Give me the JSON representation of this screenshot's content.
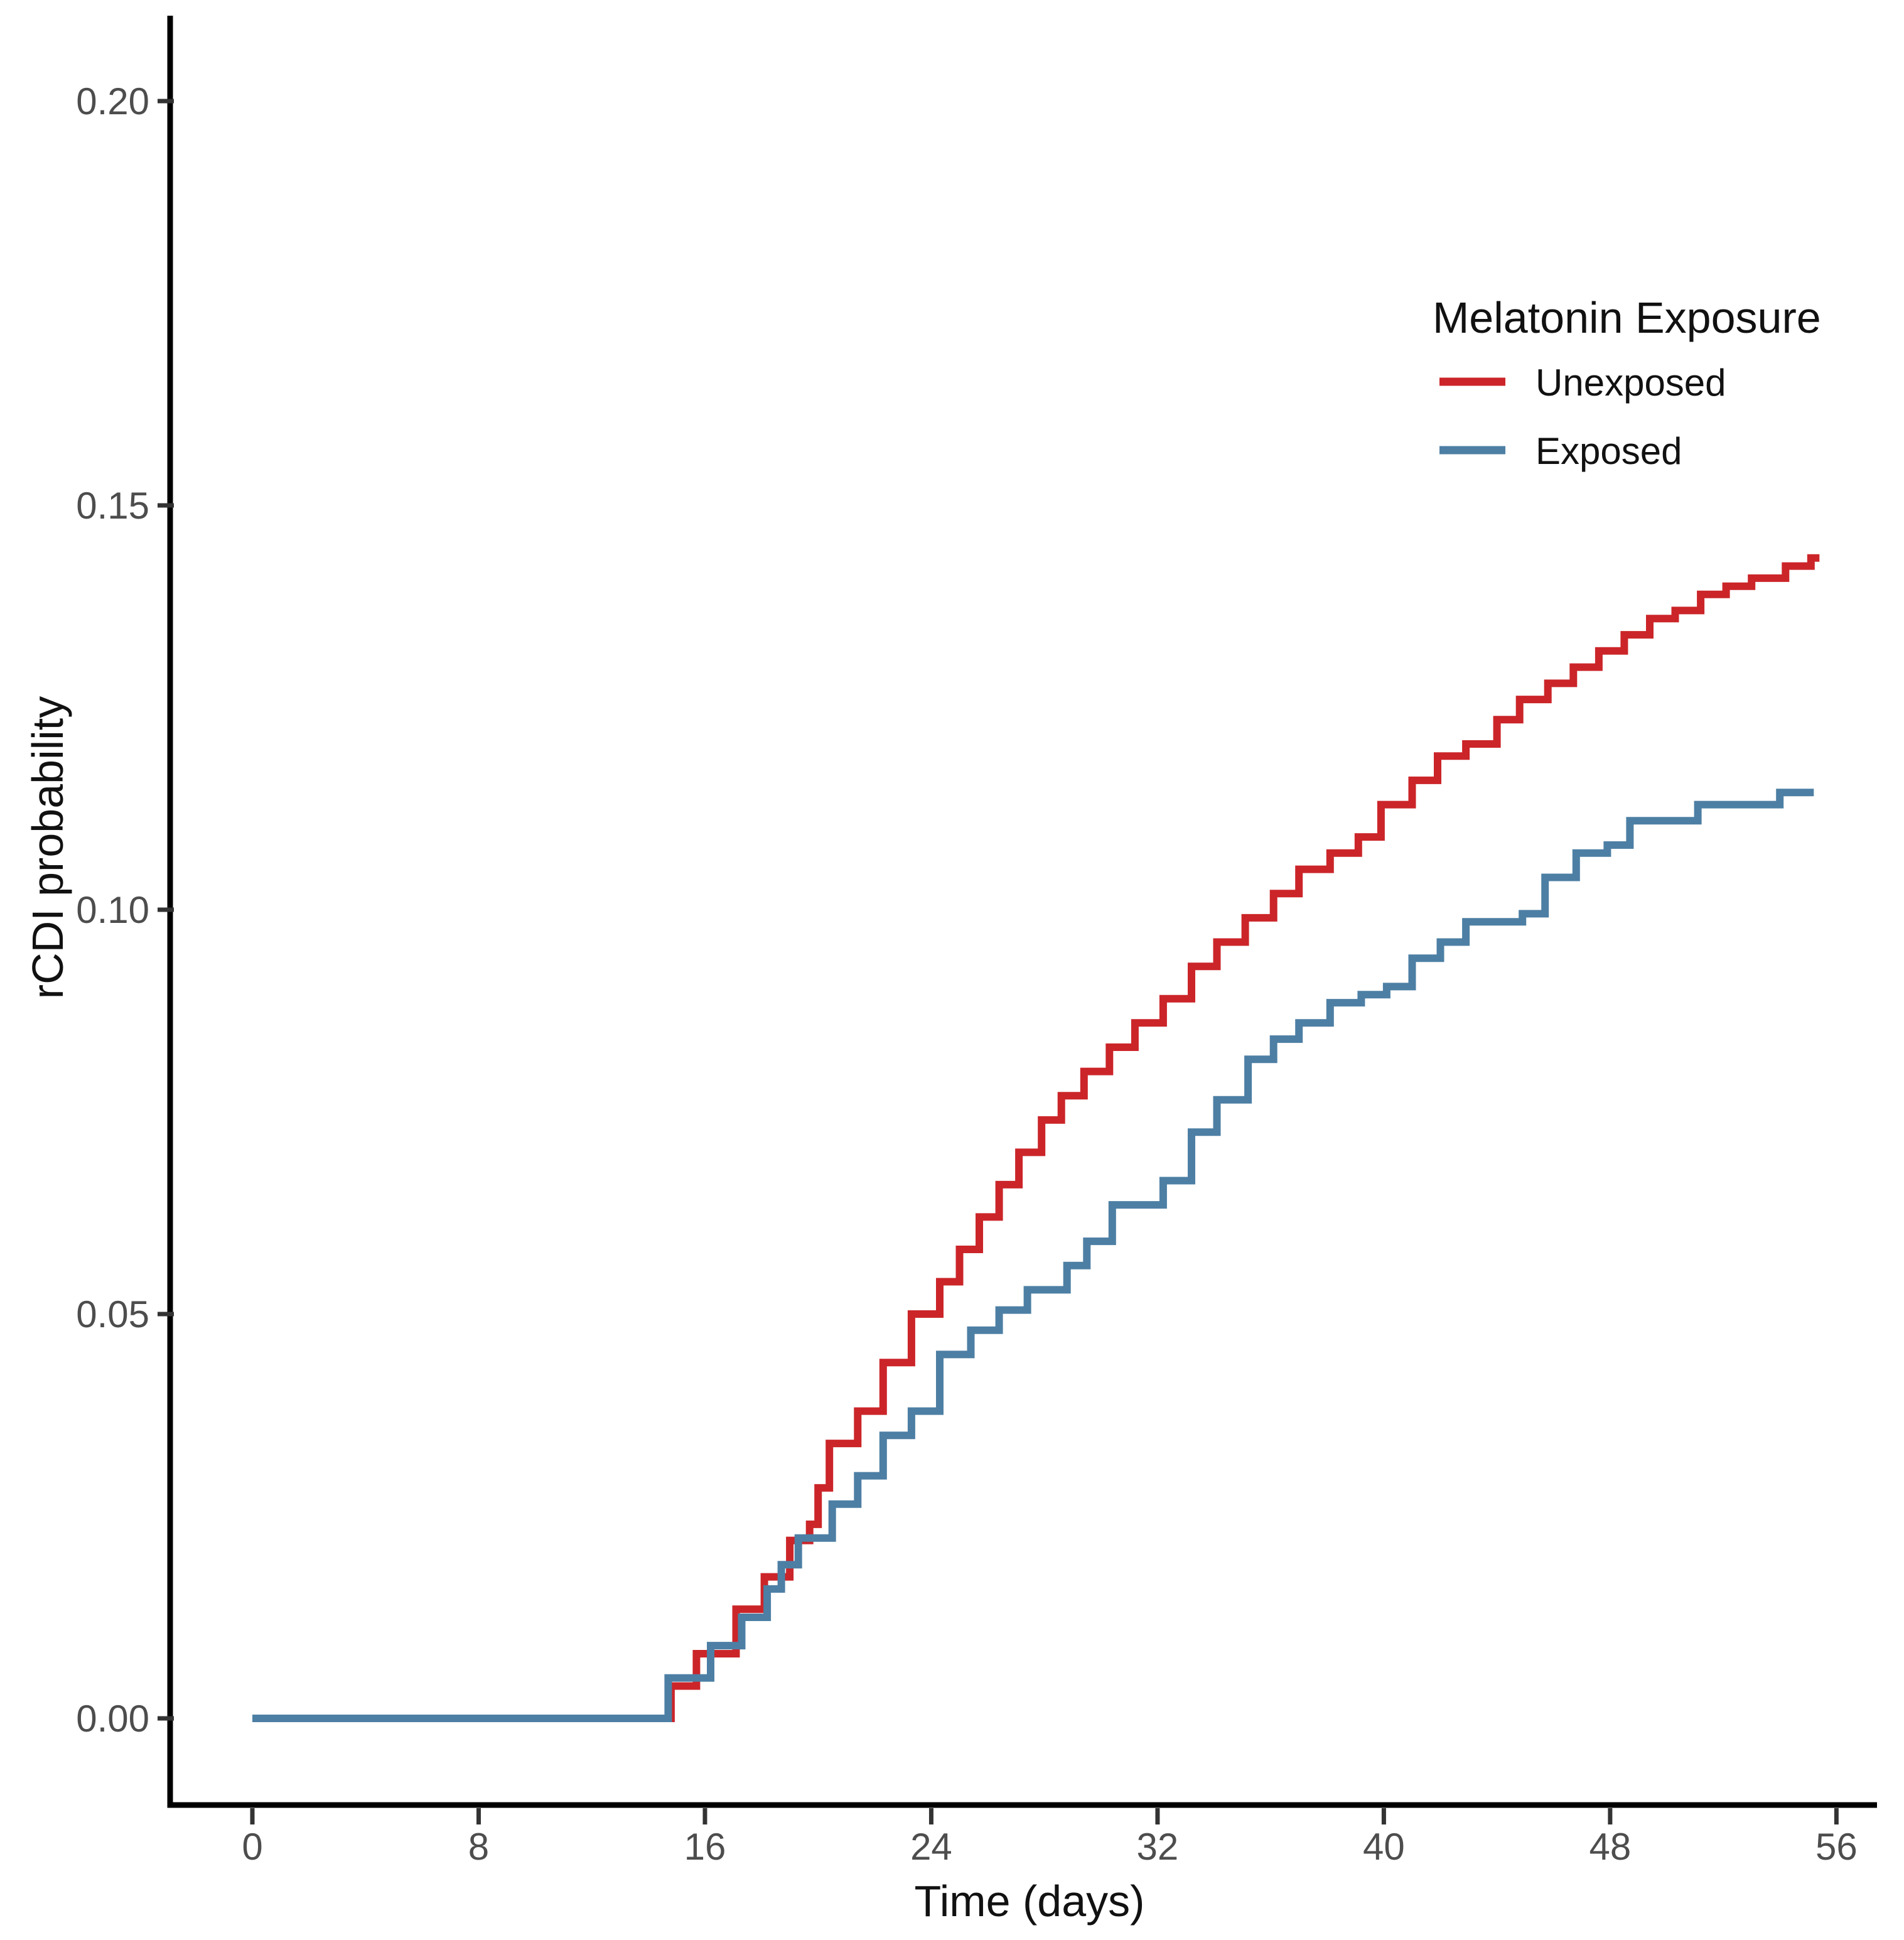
{
  "chart_data": {
    "type": "line",
    "variant": "step-cumulative-incidence",
    "title": "",
    "xlabel": "Time (days)",
    "ylabel": "rCDI probability",
    "xlim": [
      0,
      56
    ],
    "ylim": [
      0,
      0.21
    ],
    "x_ticks": [
      0,
      8,
      16,
      24,
      32,
      40,
      48,
      56
    ],
    "y_ticks": [
      0.0,
      0.05,
      0.1,
      0.15,
      0.2
    ],
    "y_tick_labels": [
      "0.00",
      "0.05",
      "0.10",
      "0.15",
      "0.20"
    ],
    "grid": false,
    "legend": {
      "title": "Melatonin Exposure",
      "position": "top-right-inside",
      "entries": [
        {
          "label": "Unexposed",
          "color": "#CB2529"
        },
        {
          "label": "Exposed",
          "color": "#4D7FA4"
        }
      ]
    },
    "series": [
      {
        "name": "Unexposed",
        "color": "#CB2529",
        "points": [
          [
            0,
            0
          ],
          [
            14.8,
            0.004
          ],
          [
            15.7,
            0.008
          ],
          [
            17.1,
            0.0135
          ],
          [
            18.1,
            0.0175
          ],
          [
            19.0,
            0.022
          ],
          [
            19.7,
            0.024
          ],
          [
            20.0,
            0.0285
          ],
          [
            20.4,
            0.034
          ],
          [
            21.4,
            0.038
          ],
          [
            22.3,
            0.044
          ],
          [
            23.3,
            0.05
          ],
          [
            24.3,
            0.054
          ],
          [
            25.0,
            0.058
          ],
          [
            25.7,
            0.062
          ],
          [
            26.4,
            0.066
          ],
          [
            27.1,
            0.07
          ],
          [
            27.9,
            0.074
          ],
          [
            28.6,
            0.077
          ],
          [
            29.4,
            0.08
          ],
          [
            30.3,
            0.083
          ],
          [
            31.2,
            0.086
          ],
          [
            32.2,
            0.089
          ],
          [
            33.2,
            0.093
          ],
          [
            34.1,
            0.096
          ],
          [
            35.1,
            0.099
          ],
          [
            36.1,
            0.102
          ],
          [
            37.0,
            0.105
          ],
          [
            38.1,
            0.107
          ],
          [
            39.1,
            0.109
          ],
          [
            39.9,
            0.113
          ],
          [
            41.0,
            0.116
          ],
          [
            41.9,
            0.119
          ],
          [
            42.9,
            0.1205
          ],
          [
            44.0,
            0.1235
          ],
          [
            44.8,
            0.126
          ],
          [
            45.8,
            0.128
          ],
          [
            46.7,
            0.13
          ],
          [
            47.6,
            0.132
          ],
          [
            48.5,
            0.134
          ],
          [
            49.4,
            0.136
          ],
          [
            50.3,
            0.137
          ],
          [
            51.2,
            0.139
          ],
          [
            52.1,
            0.14
          ],
          [
            53.0,
            0.141
          ],
          [
            54.2,
            0.1425
          ],
          [
            55.1,
            0.1435
          ],
          [
            55.4,
            0.1435
          ]
        ]
      },
      {
        "name": "Exposed",
        "color": "#4D7FA4",
        "points": [
          [
            0,
            0
          ],
          [
            14.7,
            0.005
          ],
          [
            16.2,
            0.009
          ],
          [
            17.3,
            0.0125
          ],
          [
            18.2,
            0.016
          ],
          [
            18.7,
            0.019
          ],
          [
            19.3,
            0.0223
          ],
          [
            20.5,
            0.0265
          ],
          [
            21.4,
            0.03
          ],
          [
            22.3,
            0.035
          ],
          [
            23.3,
            0.038
          ],
          [
            24.3,
            0.045
          ],
          [
            25.4,
            0.048
          ],
          [
            26.4,
            0.0505
          ],
          [
            27.4,
            0.053
          ],
          [
            28.8,
            0.056
          ],
          [
            29.5,
            0.059
          ],
          [
            30.4,
            0.0635
          ],
          [
            32.2,
            0.0665
          ],
          [
            33.2,
            0.0725
          ],
          [
            34.1,
            0.0765
          ],
          [
            35.2,
            0.0815
          ],
          [
            36.1,
            0.084
          ],
          [
            37.0,
            0.086
          ],
          [
            38.1,
            0.0885
          ],
          [
            39.2,
            0.0895
          ],
          [
            40.1,
            0.0905
          ],
          [
            41.0,
            0.094
          ],
          [
            42.0,
            0.096
          ],
          [
            42.9,
            0.0985
          ],
          [
            44.9,
            0.0995
          ],
          [
            45.7,
            0.104
          ],
          [
            46.8,
            0.107
          ],
          [
            47.9,
            0.108
          ],
          [
            48.7,
            0.111
          ],
          [
            51.1,
            0.113
          ],
          [
            54.0,
            0.1145
          ],
          [
            55.2,
            0.1145
          ]
        ]
      }
    ]
  },
  "style": {
    "background": "#FFFFFF",
    "axis_color": "#000000",
    "tick_color": "#333333",
    "tick_label_color": "#4D4D4D",
    "text_color": "#111111",
    "unexposed_color": "#CB2529",
    "exposed_color": "#4D7FA4"
  }
}
